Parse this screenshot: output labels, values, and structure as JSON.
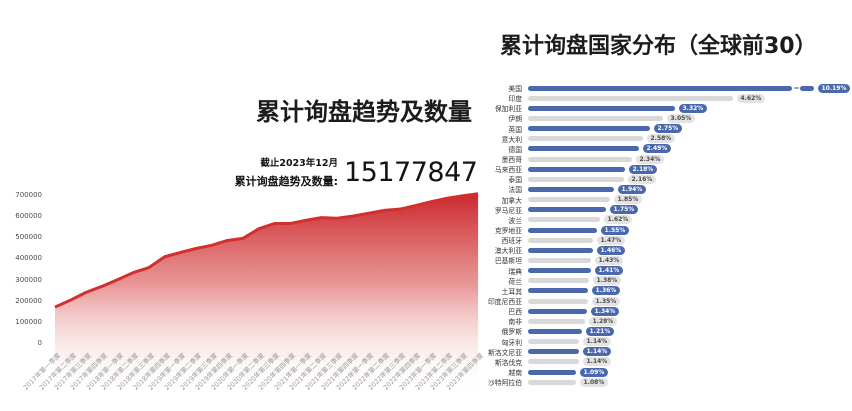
{
  "left_chart": {
    "title": "累计询盘趋势及数量",
    "asof_label": "截止2023年12月",
    "total_label": "累计询盘趋势及数量:",
    "total_value": "15177847"
  },
  "right_chart": {
    "title": "累计询盘国家分布（全球前30）"
  },
  "colors": {
    "accent_red": "#d2302c",
    "accent_blue": "#4a68ae",
    "track_gray": "#d8d8d8",
    "pill_gray": "#e3e3e3"
  },
  "chart_data": [
    {
      "type": "area",
      "title": "累计询盘趋势及数量",
      "x": [
        "2017年第一季度",
        "2017年第二季度",
        "2017年第三季度",
        "2017年第四季度",
        "2018年第一季度",
        "2018年第二季度",
        "2018年第三季度",
        "2018年第四季度",
        "2019年第一季度",
        "2019年第二季度",
        "2019年第三季度",
        "2019年第四季度",
        "2020年第一季度",
        "2020年第二季度",
        "2020年第三季度",
        "2020年第四季度",
        "2021年第一季度",
        "2021年第二季度",
        "2021年第三季度",
        "2021年第四季度",
        "2022年第一季度",
        "2022年第二季度",
        "2022年第三季度",
        "2022年第四季度",
        "2023年第一季度",
        "2023年第二季度",
        "2023年第三季度",
        "2023年第四季度"
      ],
      "values": [
        170000,
        203000,
        240000,
        268000,
        300000,
        333000,
        357000,
        408000,
        428000,
        447000,
        462000,
        485000,
        495000,
        540000,
        565000,
        565000,
        580000,
        593000,
        590000,
        600000,
        613000,
        627000,
        633000,
        650000,
        668000,
        684000,
        696000,
        706000
      ],
      "ylim": [
        0,
        700000
      ],
      "yticks": [
        0,
        100000,
        200000,
        300000,
        400000,
        500000,
        600000,
        700000
      ],
      "line_color": "#d2302c",
      "fill": "red-to-white vertical gradient",
      "grid": "off",
      "legend": "none"
    },
    {
      "type": "bar",
      "orientation": "horizontal",
      "title": "累计询盘国家分布（全球前30）",
      "categories": [
        "美国",
        "印度",
        "保加利亚",
        "伊朗",
        "英国",
        "意大利",
        "德国",
        "墨西哥",
        "马来西亚",
        "泰国",
        "法国",
        "加拿大",
        "罗马尼亚",
        "波兰",
        "克罗地亚",
        "西班牙",
        "澳大利亚",
        "巴基斯坦",
        "瑞典",
        "荷兰",
        "土耳其",
        "印度尼西亚",
        "巴西",
        "南非",
        "俄罗斯",
        "匈牙利",
        "斯洛文尼亚",
        "斯洛伐克",
        "越南",
        "沙特阿拉伯"
      ],
      "values": [
        10.19,
        4.62,
        3.32,
        3.05,
        2.75,
        2.58,
        2.49,
        2.34,
        2.18,
        2.16,
        1.94,
        1.85,
        1.75,
        1.62,
        1.55,
        1.47,
        1.46,
        1.43,
        1.41,
        1.38,
        1.36,
        1.35,
        1.34,
        1.28,
        1.21,
        1.14,
        1.14,
        1.14,
        1.09,
        1.08
      ],
      "labels": [
        "10.19%",
        "4.62%",
        "3.32%",
        "3.05%",
        "2.75%",
        "2.58%",
        "2.49%",
        "2.34%",
        "2.18%",
        "2.16%",
        "1.94%",
        "1.85%",
        "1.75%",
        "1.62%",
        "1.55%",
        "1.47%",
        "1.46%",
        "1.43%",
        "1.41%",
        "1.38%",
        "1.36%",
        "1.35%",
        "1.34%",
        "1.28%",
        "1.21%",
        "1.14%",
        "1.14%",
        "1.14%",
        "1.09%",
        "1.08%"
      ],
      "axis_break_index": 0,
      "bar_color_odd_rows": "#4a68ae",
      "bar_color_even_rows": "#d8d8d8",
      "value_label_style": "pill at bar end",
      "legend": "none"
    }
  ]
}
